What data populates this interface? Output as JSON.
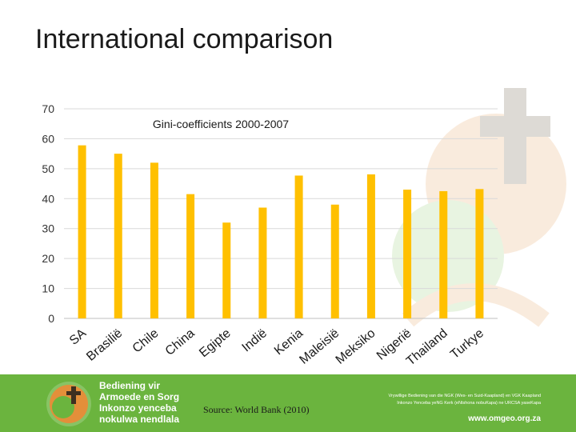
{
  "slide": {
    "title": "International comparison"
  },
  "chart_data": {
    "type": "bar",
    "title": "Gini-coefficients 2000-2007",
    "xlabel": "",
    "ylabel": "",
    "ylim": [
      0,
      70
    ],
    "y_ticks": [
      0,
      10,
      20,
      30,
      40,
      50,
      60,
      70
    ],
    "grid": true,
    "categories": [
      "SA",
      "Brasilië",
      "Chile",
      "China",
      "Egipte",
      "Indië",
      "Kenia",
      "Maleisië",
      "Meksiko",
      "Nigerië",
      "Thailand",
      "Turkye"
    ],
    "values": [
      57.8,
      55.0,
      52.0,
      41.5,
      32.0,
      37.0,
      47.7,
      38.0,
      48.1,
      43.0,
      42.5,
      43.2
    ],
    "bar_color": "#ffc000",
    "grid_color": "#d9d9d9"
  },
  "footer": {
    "org_lines": [
      "Bediening vir",
      "Armoede en Sorg",
      "Inkonzo yenceba",
      "nokulwa nendlala"
    ],
    "source_text": "Source: World Bank (2010)",
    "right_lines": [
      "Vrywillige Bediening van die NGK (Wes- en Suid-Kaapland) en VGK Kaapland",
      "Inkonzo Yenceba yeNG Kerk (eNtshona nobuKapa) ne URCSA yaseKapa"
    ],
    "url": "www.omgeo.org.za",
    "color": "#6bb43e"
  }
}
